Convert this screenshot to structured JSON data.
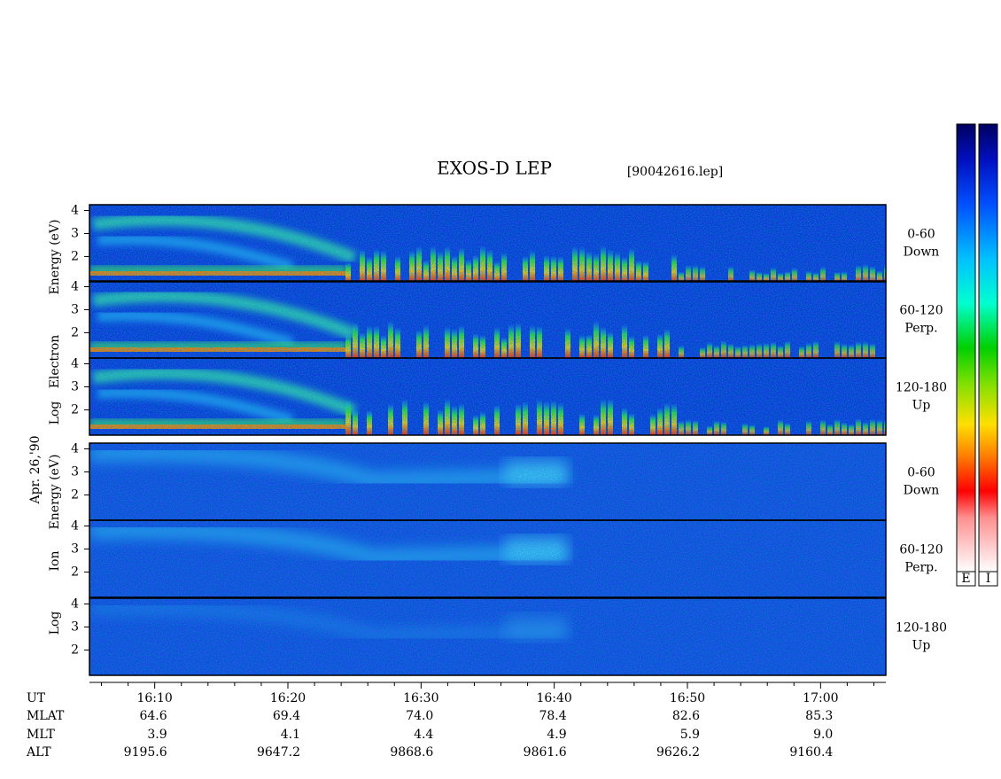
{
  "header": {
    "title": "EXOS-D LEP",
    "file": "[90042616.lep]"
  },
  "date": "Apr. 26,'90",
  "species": [
    {
      "words": [
        "Log",
        "Electron",
        "Energy (eV)"
      ]
    },
    {
      "words": [
        "Log",
        "Ion",
        "Energy (eV)"
      ]
    }
  ],
  "panels": [
    {
      "angle": "0-60",
      "direction": "Down"
    },
    {
      "angle": "60-120",
      "direction": "Perp."
    },
    {
      "angle": "120-180",
      "direction": "Up"
    },
    {
      "angle": "0-60",
      "direction": "Down"
    },
    {
      "angle": "60-120",
      "direction": "Perp."
    },
    {
      "angle": "120-180",
      "direction": "Up"
    }
  ],
  "ylim": [
    0.9,
    4.25
  ],
  "yticks": [
    2,
    3,
    4
  ],
  "xlim": [
    965.1,
    1024.9
  ],
  "xticks": [
    {
      "value": 970,
      "label": "16:10"
    },
    {
      "value": 980,
      "label": "16:20"
    },
    {
      "value": 990,
      "label": "16:30"
    },
    {
      "value": 1000,
      "label": "16:40"
    },
    {
      "value": 1010,
      "label": "16:50"
    },
    {
      "value": 1020,
      "label": "17:00"
    }
  ],
  "xminor": [
    966,
    968,
    972,
    974,
    976,
    978,
    982,
    984,
    986,
    988,
    992,
    994,
    996,
    998,
    1002,
    1004,
    1006,
    1008,
    1012,
    1014,
    1016,
    1018,
    1022,
    1024
  ],
  "ephemeris": {
    "labels": [
      "UT",
      "MLAT",
      "MLT",
      "ALT"
    ],
    "rows": [
      [
        "64.6",
        "69.4",
        "74.0",
        "78.4",
        "82.6",
        "85.3"
      ],
      [
        "3.9",
        "4.1",
        "4.4",
        "4.9",
        "5.9",
        "9.0"
      ],
      [
        "9195.6",
        "9647.2",
        "9868.6",
        "9861.6",
        "9626.2",
        "9160.4"
      ]
    ]
  },
  "colorbars": [
    "E",
    "I"
  ]
}
